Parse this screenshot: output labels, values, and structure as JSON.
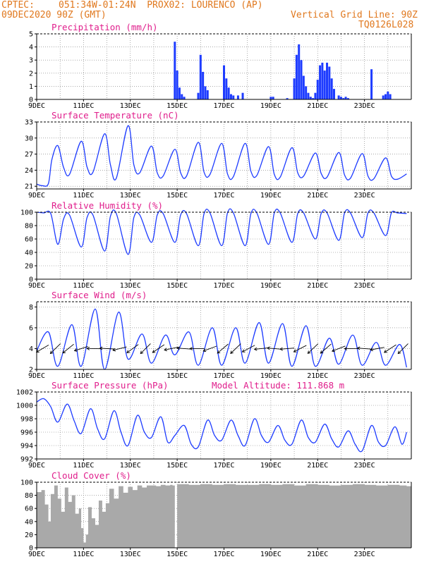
{
  "header": {
    "source": "CPTEC:",
    "location": "051:34W-01:24N  PROX02: LOURENCO (AP)",
    "run": "09DEC2020 90Z (GMT)",
    "grid_note": "Vertical Grid Line: 90Z",
    "code": "TQ0126L028"
  },
  "colors": {
    "header": "#e0781e",
    "title": "#e01e8c",
    "series": "#1e3cff",
    "cloud": "#a9a9a9"
  },
  "chart_data": [
    {
      "type": "bar",
      "title": "Precipitation (mm/h)",
      "ylim": [
        0,
        5
      ],
      "yticks": [
        0,
        1,
        2,
        3,
        4,
        5
      ],
      "xticks": [
        "9DEC",
        "11DEC",
        "13DEC",
        "15DEC",
        "17DEC",
        "19DEC",
        "21DEC",
        "23DEC"
      ],
      "x": [
        5.9,
        6.0,
        6.1,
        6.2,
        6.3,
        6.9,
        7.0,
        7.1,
        7.2,
        7.3,
        8.0,
        8.1,
        8.2,
        8.3,
        8.4,
        8.6,
        8.8,
        10.0,
        10.1,
        10.7,
        11.0,
        11.1,
        11.2,
        11.3,
        11.4,
        11.5,
        11.6,
        11.7,
        11.8,
        11.9,
        12.0,
        12.1,
        12.2,
        12.3,
        12.4,
        12.5,
        12.6,
        12.7,
        12.9,
        13.0,
        13.1,
        13.2,
        13.3,
        14.3,
        14.8,
        14.9,
        15.0,
        15.1
      ],
      "values": [
        4.4,
        2.2,
        0.9,
        0.4,
        0.2,
        0.5,
        3.4,
        2.1,
        1.0,
        0.7,
        2.6,
        1.6,
        0.9,
        0.4,
        0.3,
        0.3,
        0.5,
        0.2,
        0.2,
        0.1,
        1.6,
        3.4,
        4.2,
        3.0,
        1.8,
        1.0,
        0.5,
        0.2,
        0.1,
        0.5,
        1.5,
        2.6,
        2.8,
        2.2,
        2.8,
        2.5,
        1.6,
        0.8,
        0.3,
        0.2,
        0.1,
        0.2,
        0.1,
        2.3,
        0.3,
        0.4,
        0.6,
        0.4
      ]
    },
    {
      "type": "line",
      "title": "Surface Temperature (nC)",
      "ylim": [
        20.5,
        33
      ],
      "yticks": [
        21,
        24,
        27,
        30,
        33
      ],
      "xticks": [
        "9DEC",
        "11DEC",
        "13DEC",
        "15DEC",
        "17DEC",
        "19DEC",
        "21DEC",
        "23DEC"
      ],
      "x": [
        0.0,
        0.25,
        0.5,
        0.65,
        0.9,
        1.15,
        1.4,
        1.9,
        2.15,
        2.4,
        2.9,
        3.15,
        3.4,
        3.9,
        4.15,
        4.4,
        4.9,
        5.15,
        5.4,
        5.9,
        6.15,
        6.4,
        6.9,
        7.15,
        7.4,
        7.9,
        8.15,
        8.4,
        8.9,
        9.15,
        9.4,
        9.9,
        10.15,
        10.4,
        10.9,
        11.15,
        11.4,
        11.9,
        12.15,
        12.4,
        12.9,
        13.15,
        13.4,
        13.9,
        14.15,
        14.4,
        14.9,
        15.15,
        15.4,
        15.8
      ],
      "values": [
        21.4,
        21.1,
        21.5,
        26.0,
        28.6,
        24.5,
        23.2,
        29.4,
        24.6,
        23.6,
        30.8,
        25.0,
        22.5,
        32.3,
        25.0,
        23.5,
        28.5,
        23.5,
        22.9,
        27.9,
        23.5,
        22.9,
        29.2,
        23.6,
        23.2,
        29.0,
        23.3,
        22.8,
        29.0,
        23.8,
        23.0,
        28.4,
        23.2,
        22.7,
        28.2,
        23.5,
        22.9,
        27.2,
        23.4,
        22.7,
        27.3,
        23.1,
        22.5,
        27.1,
        22.9,
        22.4,
        26.3,
        22.9,
        22.3,
        23.3
      ]
    },
    {
      "type": "line",
      "title": "Relative Humidity (%)",
      "ylim": [
        0,
        100
      ],
      "yticks": [
        0,
        20,
        40,
        60,
        80,
        100
      ],
      "xticks": [
        "9DEC",
        "11DEC",
        "13DEC",
        "15DEC",
        "17DEC",
        "19DEC",
        "21DEC",
        "23DEC"
      ],
      "x": [
        0.0,
        0.3,
        0.6,
        0.9,
        1.15,
        1.4,
        1.9,
        2.15,
        2.4,
        2.9,
        3.15,
        3.4,
        3.9,
        4.15,
        4.4,
        4.9,
        5.15,
        5.4,
        5.9,
        6.15,
        6.4,
        6.9,
        7.15,
        7.4,
        7.9,
        8.15,
        8.4,
        8.9,
        9.15,
        9.4,
        9.9,
        10.15,
        10.4,
        10.9,
        11.15,
        11.4,
        11.9,
        12.15,
        12.4,
        12.9,
        13.15,
        13.4,
        13.9,
        14.15,
        14.4,
        14.9,
        15.15,
        15.4,
        15.8
      ],
      "values": [
        100,
        99,
        98,
        52,
        90,
        96,
        48,
        92,
        96,
        42,
        94,
        98,
        37,
        92,
        96,
        55,
        96,
        98,
        55,
        96,
        98,
        50,
        98,
        99,
        50,
        99,
        99,
        50,
        98,
        99,
        52,
        99,
        99,
        55,
        98,
        99,
        60,
        98,
        99,
        58,
        99,
        99,
        62,
        99,
        99,
        65,
        99,
        99,
        98
      ]
    },
    {
      "type": "line",
      "title": "Surface Wind (m/s)",
      "ylim": [
        2,
        8.5
      ],
      "yticks": [
        2,
        4,
        6,
        8
      ],
      "xticks": [
        "9DEC",
        "11DEC",
        "13DEC",
        "15DEC",
        "17DEC",
        "19DEC",
        "21DEC",
        "23DEC"
      ],
      "x": [
        0.0,
        0.5,
        0.9,
        1.5,
        1.9,
        2.5,
        2.9,
        3.5,
        3.9,
        4.5,
        4.9,
        5.5,
        5.9,
        6.5,
        6.9,
        7.5,
        7.9,
        8.5,
        8.9,
        9.5,
        9.9,
        10.5,
        10.9,
        11.5,
        11.9,
        12.5,
        12.9,
        13.5,
        13.9,
        14.5,
        14.9,
        15.5,
        15.8
      ],
      "values": [
        3.8,
        5.6,
        2.3,
        6.3,
        2.3,
        7.8,
        2.0,
        7.5,
        3.0,
        5.4,
        2.6,
        5.3,
        3.4,
        5.6,
        2.4,
        6.0,
        2.4,
        6.0,
        2.6,
        6.5,
        2.6,
        6.4,
        2.3,
        6.2,
        2.3,
        5.0,
        2.5,
        5.3,
        2.4,
        4.6,
        2.4,
        4.4,
        2.2
      ]
    },
    {
      "type": "line",
      "title": "Surface Pressure (hPa)",
      "annotation": "Model Altitude: 111.868 m",
      "ylim": [
        992,
        1002
      ],
      "yticks": [
        992,
        994,
        996,
        998,
        1000,
        1002
      ],
      "xticks": [
        "9DEC",
        "11DEC",
        "13DEC",
        "15DEC",
        "17DEC",
        "19DEC",
        "21DEC",
        "23DEC"
      ],
      "x": [
        0.0,
        0.3,
        0.6,
        0.9,
        1.3,
        1.6,
        1.9,
        2.3,
        2.6,
        2.9,
        3.3,
        3.6,
        3.9,
        4.3,
        4.6,
        4.9,
        5.3,
        5.6,
        5.9,
        6.3,
        6.6,
        6.9,
        7.3,
        7.6,
        7.9,
        8.3,
        8.6,
        8.9,
        9.3,
        9.6,
        9.9,
        10.3,
        10.6,
        10.9,
        11.3,
        11.6,
        11.9,
        12.3,
        12.6,
        12.9,
        13.3,
        13.6,
        13.9,
        14.3,
        14.6,
        14.9,
        15.3,
        15.6,
        15.8
      ],
      "values": [
        1000.5,
        1001.0,
        999.8,
        997.5,
        1000.2,
        997.7,
        995.8,
        999.5,
        996.5,
        995.0,
        999.2,
        996.0,
        994.0,
        998.5,
        996.0,
        995.2,
        998.3,
        994.5,
        995.5,
        997.0,
        994.2,
        993.8,
        997.8,
        995.5,
        994.8,
        997.8,
        995.5,
        994.0,
        998.0,
        995.5,
        994.5,
        997.0,
        994.8,
        994.2,
        997.8,
        995.2,
        994.5,
        997.2,
        995.0,
        993.8,
        996.2,
        994.2,
        993.2,
        997.0,
        994.5,
        994.0,
        996.8,
        994.2,
        996.0
      ]
    },
    {
      "type": "bar",
      "title": "Cloud Cover (%)",
      "ylim": [
        0,
        100
      ],
      "yticks": [
        0,
        20,
        40,
        60,
        80,
        100
      ],
      "xticks": [
        "9DEC",
        "11DEC",
        "13DEC",
        "15DEC",
        "17DEC",
        "19DEC",
        "21DEC",
        "23DEC"
      ],
      "x": [
        0.0,
        0.2,
        0.35,
        0.5,
        0.6,
        0.75,
        0.9,
        1.05,
        1.2,
        1.35,
        1.5,
        1.65,
        1.8,
        1.9,
        2.0,
        2.1,
        2.2,
        2.35,
        2.5,
        2.65,
        2.8,
        2.95,
        3.1,
        3.3,
        3.5,
        3.7,
        3.9,
        4.1,
        4.3,
        4.5,
        4.7,
        4.9,
        5.1,
        5.3,
        5.5,
        5.7,
        5.8,
        5.9,
        6.0,
        6.5,
        7.0,
        7.5,
        8.0,
        8.5,
        9.0,
        9.5,
        10.0,
        10.5,
        11.0,
        11.5,
        12.0,
        12.5,
        13.0,
        13.5,
        14.0,
        14.5,
        15.0,
        15.5,
        15.8
      ],
      "values": [
        85,
        88,
        66,
        40,
        82,
        95,
        75,
        55,
        92,
        70,
        80,
        52,
        60,
        30,
        8,
        20,
        62,
        45,
        35,
        72,
        55,
        68,
        90,
        75,
        94,
        84,
        93,
        88,
        95,
        92,
        95,
        95,
        94,
        96,
        95,
        96,
        95,
        0,
        97,
        96,
        97,
        96,
        97,
        96,
        96,
        97,
        96,
        97,
        95,
        97,
        96,
        95,
        96,
        97,
        96,
        95,
        96,
        95,
        94
      ]
    }
  ]
}
